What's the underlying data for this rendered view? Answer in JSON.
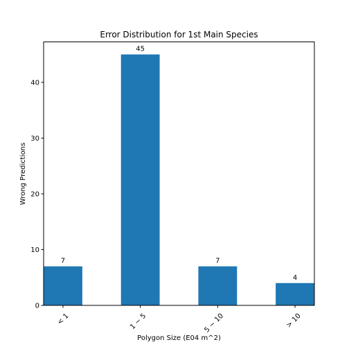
{
  "chart_data": {
    "type": "bar",
    "title": "Error Distribution for 1st Main Species",
    "xlabel": "Polygon Size (E04 m^2)",
    "ylabel": "Wrong Predictions",
    "categories": [
      "< 1",
      "1 ~ 5",
      "5 ~ 10",
      "> 10"
    ],
    "values": [
      7,
      45,
      7,
      4
    ],
    "data_labels": [
      "7",
      "45",
      "7",
      "4"
    ],
    "ylim": [
      0,
      47.25
    ],
    "yticks": [
      0,
      10,
      20,
      30,
      40
    ],
    "ytick_labels": [
      "0",
      "10",
      "20",
      "30",
      "40"
    ],
    "bar_color": "#1f77b4",
    "grid": false,
    "legend": "none",
    "xtick_rotation": "45 degrees"
  }
}
